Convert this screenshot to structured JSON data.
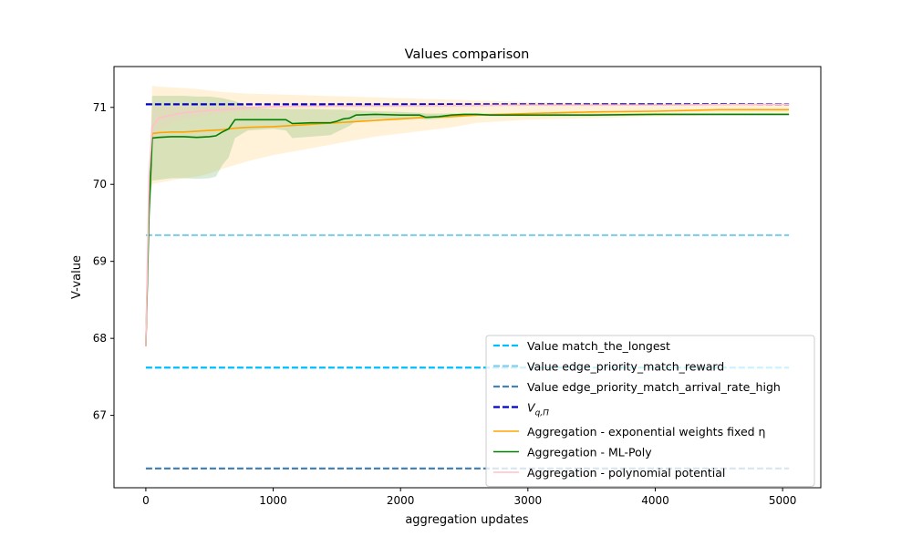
{
  "chart_data": {
    "type": "line",
    "title": "Values comparison",
    "xlabel": "aggregation updates",
    "ylabel": "V-value",
    "xlim": [
      -250,
      5300
    ],
    "ylim": [
      66.06,
      71.53
    ],
    "xticks": [
      0,
      1000,
      2000,
      3000,
      4000,
      5000
    ],
    "yticks": [
      67,
      68,
      69,
      70,
      71
    ],
    "grid": false,
    "legend_position": "lower-right",
    "reference_lines": [
      {
        "name": "Value match_the_longest",
        "y": 67.62,
        "x_range": [
          0,
          5050
        ],
        "color": "#00bfff"
      },
      {
        "name": "Value edge_priority_match_reward",
        "y": 69.34,
        "x_range": [
          0,
          5050
        ],
        "color": "#87ceeb"
      },
      {
        "name": "Value edge_priority_match_arrival_rate_high",
        "y": 66.31,
        "x_range": [
          0,
          5050
        ],
        "color": "#4682b4"
      },
      {
        "name": "V_{q,Π}",
        "y": 71.04,
        "x_range": [
          0,
          5050
        ],
        "color": "#0000cd"
      }
    ],
    "series": [
      {
        "name": "Aggregation - exponential weights fixed η",
        "color": "#ffa500",
        "x": [
          0,
          25,
          50,
          100,
          200,
          300,
          400,
          500,
          600,
          700,
          800,
          1000,
          1200,
          1400,
          1600,
          1800,
          2000,
          2200,
          2400,
          2600,
          2800,
          3000,
          3500,
          4000,
          4500,
          5050
        ],
        "y": [
          67.9,
          69.8,
          70.66,
          70.67,
          70.68,
          70.68,
          70.69,
          70.7,
          70.71,
          70.73,
          70.74,
          70.75,
          70.77,
          70.79,
          70.81,
          70.83,
          70.85,
          70.87,
          70.88,
          70.9,
          70.91,
          70.92,
          70.94,
          70.95,
          70.97,
          70.97
        ],
        "band_low": [
          67.9,
          69.8,
          70.0,
          70.02,
          70.05,
          70.08,
          70.1,
          70.14,
          70.2,
          70.25,
          70.3,
          70.38,
          70.44,
          70.5,
          70.56,
          70.62,
          70.66,
          70.7,
          70.74,
          70.8,
          70.82,
          70.84,
          70.86,
          70.88,
          70.9,
          70.92
        ],
        "band_high": [
          67.9,
          69.9,
          71.28,
          71.27,
          71.26,
          71.25,
          71.24,
          71.22,
          71.2,
          71.19,
          71.18,
          71.17,
          71.16,
          71.15,
          71.14,
          71.13,
          71.12,
          71.11,
          71.1,
          71.09,
          71.08,
          71.07,
          71.06,
          71.05,
          71.04,
          71.04
        ]
      },
      {
        "name": "Aggregation - ML-Poly",
        "color": "#008000",
        "x": [
          0,
          25,
          50,
          100,
          200,
          300,
          400,
          500,
          550,
          600,
          650,
          700,
          750,
          800,
          1000,
          1100,
          1150,
          1300,
          1450,
          1500,
          1550,
          1600,
          1650,
          1800,
          2000,
          2150,
          2200,
          2300,
          2400,
          2500,
          2600,
          2700,
          3000,
          3500,
          4000,
          4500,
          5050
        ],
        "y": [
          67.9,
          69.6,
          70.6,
          70.61,
          70.62,
          70.62,
          70.61,
          70.62,
          70.63,
          70.68,
          70.72,
          70.84,
          70.84,
          70.84,
          70.84,
          70.84,
          70.79,
          70.8,
          70.8,
          70.82,
          70.85,
          70.86,
          70.9,
          70.91,
          70.9,
          70.9,
          70.87,
          70.88,
          70.9,
          70.91,
          70.91,
          70.9,
          70.9,
          70.9,
          70.91,
          70.91,
          70.91
        ],
        "band_low": [
          67.9,
          69.6,
          70.05,
          70.06,
          70.08,
          70.08,
          70.07,
          70.08,
          70.1,
          70.25,
          70.35,
          70.6,
          70.65,
          70.7,
          70.72,
          70.7,
          70.6,
          70.62,
          70.64,
          70.68,
          70.72,
          70.76,
          70.82,
          70.85,
          70.85,
          70.85,
          70.84,
          70.85,
          70.87,
          70.88,
          70.89,
          70.89,
          70.89,
          70.89,
          70.9,
          70.9,
          70.9
        ],
        "band_high": [
          67.9,
          69.7,
          71.15,
          71.15,
          71.15,
          71.15,
          71.14,
          71.14,
          71.13,
          71.12,
          71.1,
          71.08,
          71.05,
          71.0,
          70.98,
          70.98,
          70.98,
          70.98,
          70.97,
          70.97,
          70.97,
          70.96,
          70.96,
          70.95,
          70.94,
          70.93,
          70.92,
          70.92,
          70.92,
          70.92,
          70.92,
          70.92,
          70.92,
          70.92,
          70.92,
          70.92,
          70.92
        ]
      },
      {
        "name": "Aggregation - polynomial potential",
        "color": "#ffc0cb",
        "x": [
          0,
          25,
          50,
          100,
          150,
          200,
          300,
          500,
          700,
          800,
          1000,
          1500,
          2000,
          3000,
          4000,
          5050
        ],
        "y": [
          67.9,
          70.1,
          70.75,
          70.86,
          70.88,
          70.9,
          70.93,
          70.96,
          70.98,
          71.0,
          71.01,
          71.02,
          71.02,
          71.03,
          71.03,
          71.04
        ],
        "band_low": [
          67.9,
          69.9,
          70.5,
          70.7,
          70.75,
          70.8,
          70.85,
          70.9,
          70.94,
          70.96,
          70.98,
          71.0,
          71.0,
          71.01,
          71.02,
          71.03
        ],
        "band_high": [
          67.9,
          70.3,
          71.0,
          71.02,
          71.02,
          71.03,
          71.03,
          71.04,
          71.04,
          71.05,
          71.05,
          71.05,
          71.05,
          71.05,
          71.05,
          71.05
        ]
      }
    ],
    "legend": [
      {
        "label": "Value match_the_longest",
        "color": "#00bfff",
        "dashed": true
      },
      {
        "label": "Value edge_priority_match_reward",
        "color": "#87ceeb",
        "dashed": true
      },
      {
        "label": "Value edge_priority_match_arrival_rate_high",
        "color": "#4682b4",
        "dashed": true
      },
      {
        "label": "V",
        "sub": "q,Π",
        "color": "#0000cd",
        "dashed": true
      },
      {
        "label": "Aggregation - exponential weights fixed η",
        "color": "#ffa500",
        "dashed": false
      },
      {
        "label": "Aggregation - ML-Poly",
        "color": "#008000",
        "dashed": false
      },
      {
        "label": "Aggregation - polynomial potential",
        "color": "#ffc0cb",
        "dashed": false
      }
    ]
  }
}
